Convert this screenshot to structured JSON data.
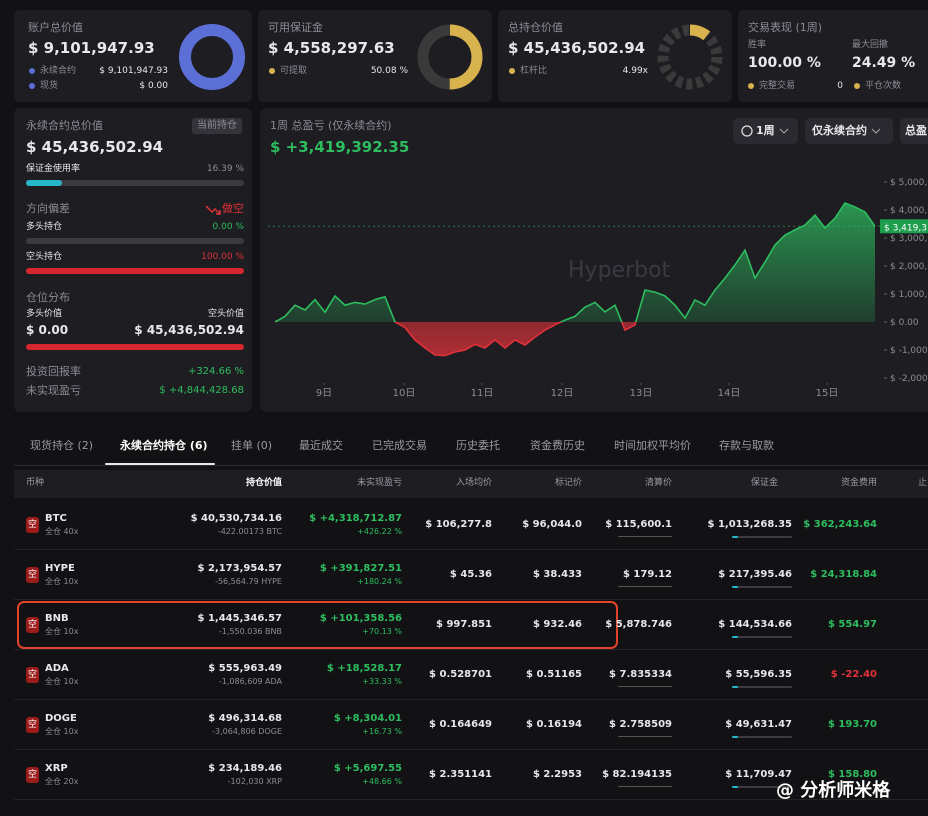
{
  "cards": [
    {
      "title": "账户总价值",
      "value": "$ 9,101,947.93",
      "legend": [
        {
          "label": "永续合约",
          "value": "$ 9,101,947.93"
        },
        {
          "label": "现货",
          "value": "$ 0.00"
        }
      ]
    },
    {
      "title": "可用保证金",
      "value": "$ 4,558,297.63",
      "legend": [
        {
          "label": "可提取",
          "value": "50.08 %"
        }
      ]
    },
    {
      "title": "总持仓价值",
      "value": "$ 45,436,502.94",
      "legend": [
        {
          "label": "杠杆比",
          "value": "4.99x"
        }
      ]
    }
  ],
  "performance": {
    "title": "交易表现 (1周)",
    "win_rate_label": "胜率",
    "win_rate": "100.00 %",
    "drawdown_label": "最大回撤",
    "drawdown": "24.49 %",
    "trades_label": "完整交易",
    "trades": "0",
    "close_label": "平仓次数"
  },
  "summary": {
    "title": "永续合约总价值",
    "badge": "当前持仓",
    "value": "$ 45,436,502.94",
    "margin_label": "保证金使用率",
    "margin": "16.39 %",
    "bias_label": "方向偏差",
    "bias": "做空",
    "long_label": "多头持仓",
    "long": "0.00 %",
    "short_label": "空头持仓",
    "short": "100.00 %",
    "dist_label": "仓位分布",
    "long_value_label": "多头价值",
    "short_value_label": "空头价值",
    "long_value": "$ 0.00",
    "short_value": "$ 45,436,502.94",
    "roi_label": "投资回报率",
    "roi": "+324.66 %",
    "upnl_label": "未实现盈亏",
    "upnl": "$ +4,844,428.68"
  },
  "chart_data": {
    "type": "line",
    "title": "1周 总盈亏 (仅永续合约)",
    "value": "$ +3,419,392.35",
    "controls": [
      "1周",
      "仅永续合约",
      "总盈"
    ],
    "watermark": "Hyperbot",
    "current_label": "$ 3,419,3",
    "x": [
      0,
      1,
      2,
      3,
      4,
      5,
      6,
      7,
      8,
      9,
      10,
      11,
      12,
      13,
      14,
      15,
      16,
      17,
      18,
      19,
      20,
      21,
      22,
      23,
      24,
      25,
      26,
      27,
      28,
      29,
      30,
      31,
      32,
      33,
      34,
      35,
      36,
      37,
      38,
      39,
      40,
      41,
      42,
      43,
      44,
      45,
      46,
      47,
      48,
      49,
      50,
      51,
      52,
      53,
      54,
      55,
      56,
      57,
      58,
      59,
      60
    ],
    "values": [
      0,
      200000,
      600000,
      430000,
      800000,
      350000,
      930000,
      600000,
      700000,
      640000,
      800000,
      900000,
      0,
      -200000,
      -640000,
      -930000,
      -1180000,
      -1200000,
      -1070000,
      -1000000,
      -800000,
      -930000,
      -640000,
      -930000,
      -640000,
      -820000,
      -540000,
      -290000,
      -100000,
      70000,
      200000,
      530000,
      700000,
      360000,
      600000,
      -290000,
      -100000,
      1140000,
      1070000,
      930000,
      600000,
      140000,
      790000,
      600000,
      1140000,
      1570000,
      2040000,
      2570000,
      1570000,
      2140000,
      2750000,
      3100000,
      3290000,
      3460000,
      3820000,
      3360000,
      3710000,
      4250000,
      4110000,
      3930000,
      3419392.35
    ],
    "color_up": "#2ebd5f",
    "color_down": "#e0323a",
    "xlim": [
      0,
      60
    ],
    "ylim": [
      -2250000,
      5430000
    ],
    "yticks": [
      {
        "value": 5000000,
        "label": "$ 5,000,0"
      },
      {
        "value": 4000000,
        "label": "$ 4,000,0"
      },
      {
        "value": 3000000,
        "label": "$ 3,000,0"
      },
      {
        "value": 2000000,
        "label": "$ 2,000,0"
      },
      {
        "value": 1000000,
        "label": "$ 1,000,0"
      },
      {
        "value": 0,
        "label": "$ 0.00"
      },
      {
        "value": -1000000,
        "label": "$ -1,000,0"
      },
      {
        "value": -2000000,
        "label": "$ -2,000,0"
      }
    ],
    "xticks": [
      {
        "value": 4.9,
        "label": "9日"
      },
      {
        "value": 12.9,
        "label": "10日"
      },
      {
        "value": 20.7,
        "label": "11日"
      },
      {
        "value": 28.7,
        "label": "12日"
      },
      {
        "value": 36.6,
        "label": "13日"
      },
      {
        "value": 45.4,
        "label": "14日"
      },
      {
        "value": 55.2,
        "label": "15日"
      }
    ]
  },
  "tabs": [
    "现货持仓 (2)",
    "永续合约持仓 (6)",
    "挂单 (0)",
    "最近成交",
    "已完成交易",
    "历史委托",
    "资金费历史",
    "时间加权平均价",
    "存款与取款"
  ],
  "active_tab": 1,
  "table": {
    "headers": [
      "币种",
      "持仓价值",
      "未实现盈亏",
      "入场均价",
      "标记价",
      "清算价",
      "保证金",
      "资金费用",
      "止"
    ],
    "badge": "空",
    "rows": [
      {
        "symbol": "BTC",
        "mode": "全仓 40x",
        "value": "$ 40,530,734.16",
        "qty": "-422.00173 BTC",
        "pnl": "$ +4,318,712.87",
        "pnl_pct": "+426.22 %",
        "entry": "$ 106,277.8",
        "mark": "$ 96,044.0",
        "liq": "$ 115,600.1",
        "margin": "$ 1,013,268.35",
        "funding": "$ 362,243.64"
      },
      {
        "symbol": "HYPE",
        "mode": "全仓 10x",
        "value": "$ 2,173,954.57",
        "qty": "-56,564.79 HYPE",
        "pnl": "$ +391,827.51",
        "pnl_pct": "+180.24 %",
        "entry": "$ 45.36",
        "mark": "$ 38.433",
        "liq": "$ 179.12",
        "margin": "$ 217,395.46",
        "funding": "$ 24,318.84"
      },
      {
        "symbol": "BNB",
        "mode": "全仓 10x",
        "value": "$ 1,445,346.57",
        "qty": "-1,550.036 BNB",
        "pnl": "$ +101,358.56",
        "pnl_pct": "+70.13 %",
        "entry": "$ 997.851",
        "mark": "$ 932.46",
        "liq": "$ 5,878.746",
        "margin": "$ 144,534.66",
        "funding": "$ 554.97"
      },
      {
        "symbol": "ADA",
        "mode": "全仓 10x",
        "value": "$ 555,963.49",
        "qty": "-1,086,609 ADA",
        "pnl": "$ +18,528.17",
        "pnl_pct": "+33.33 %",
        "entry": "$ 0.528701",
        "mark": "$ 0.51165",
        "liq": "$ 7.835334",
        "margin": "$ 55,596.35",
        "funding": "$ -22.40"
      },
      {
        "symbol": "DOGE",
        "mode": "全仓 10x",
        "value": "$ 496,314.68",
        "qty": "-3,064,806 DOGE",
        "pnl": "$ +8,304.01",
        "pnl_pct": "+16.73 %",
        "entry": "$ 0.164649",
        "mark": "$ 0.16194",
        "liq": "$ 2.758509",
        "margin": "$ 49,631.47",
        "funding": "$ 193.70"
      },
      {
        "symbol": "XRP",
        "mode": "全仓 20x",
        "value": "$ 234,189.46",
        "qty": "-102,030 XRP",
        "pnl": "$ +5,697.55",
        "pnl_pct": "+48.66 %",
        "entry": "$ 2.351141",
        "mark": "$ 2.2953",
        "liq": "$ 82.194135",
        "margin": "$ 11,709.47",
        "funding": "$ 158.80"
      }
    ]
  },
  "footer": "@ 分析师米格"
}
